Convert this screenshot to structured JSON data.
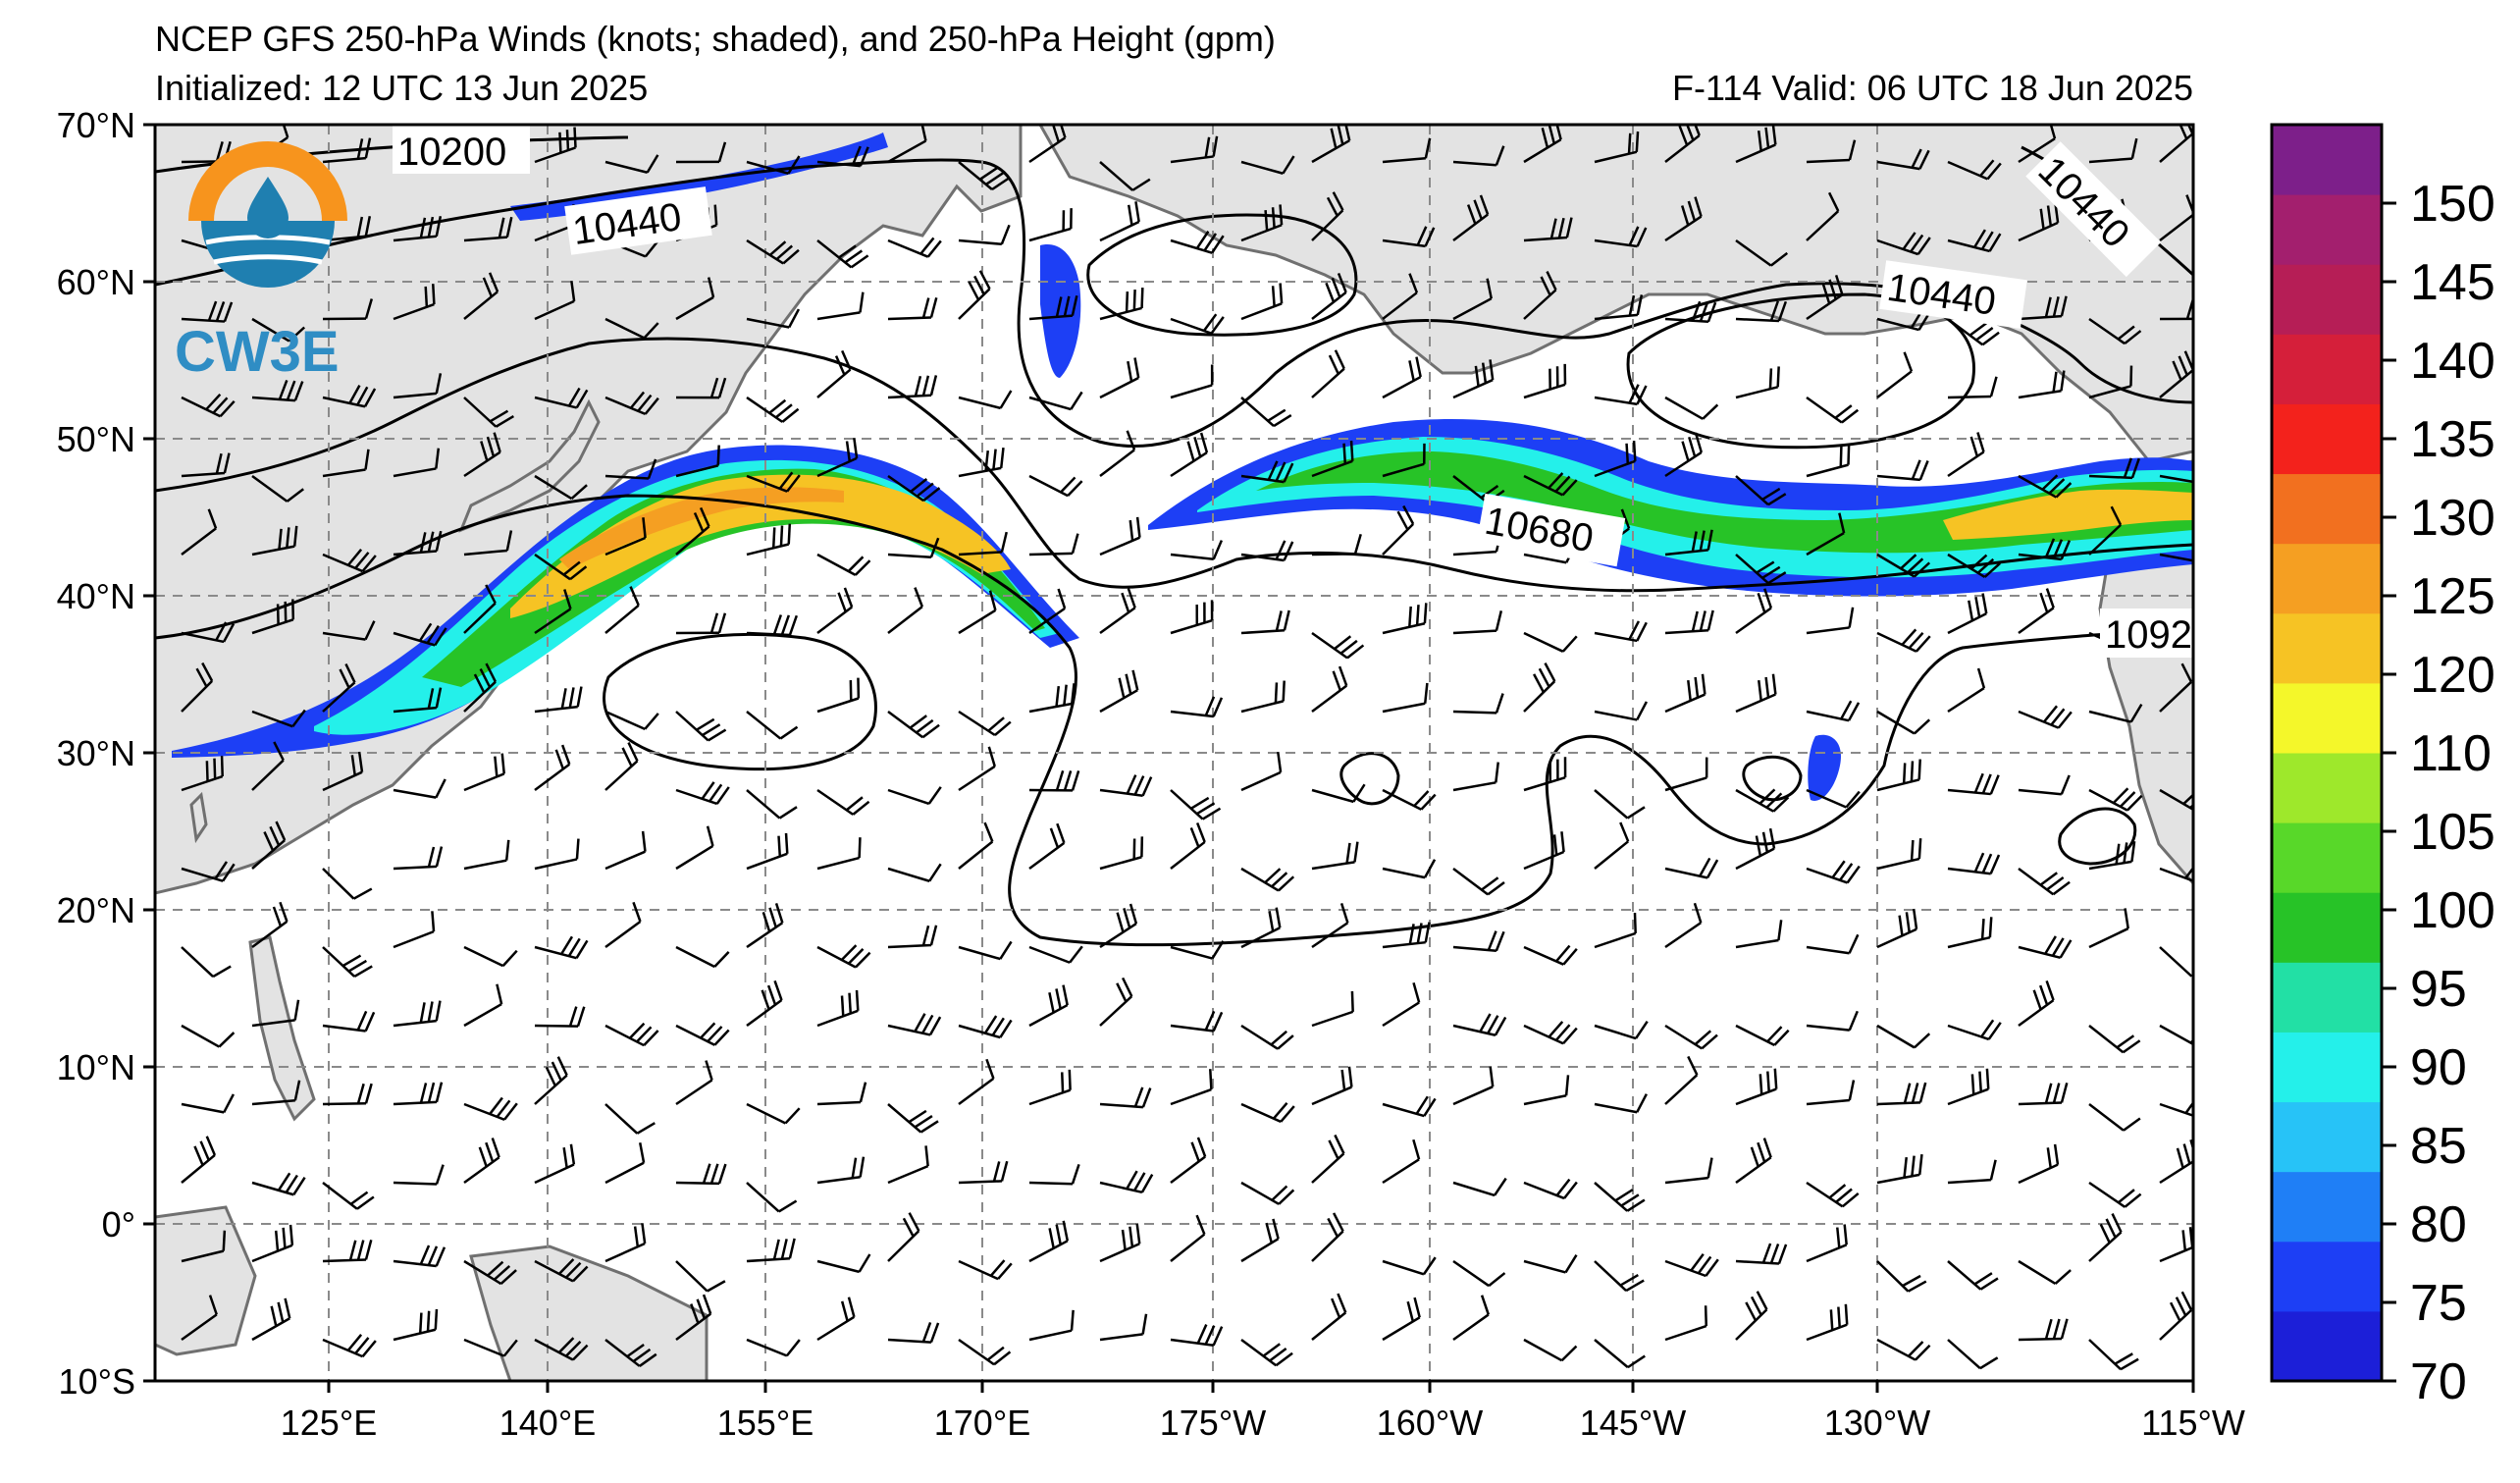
{
  "header": {
    "title": "NCEP GFS 250-hPa Winds (knots; shaded), and 250-hPa Height (gpm)",
    "initialized": "Initialized: 12 UTC 13 Jun 2025",
    "valid": "F-114  Valid: 06 UTC 18 Jun 2025"
  },
  "axes": {
    "lat_labels": [
      "70°N",
      "60°N",
      "50°N",
      "40°N",
      "30°N",
      "20°N",
      "10°N",
      "0°",
      "10°S"
    ],
    "lon_labels": [
      "125°E",
      "140°E",
      "155°E",
      "170°E",
      "175°W",
      "160°W",
      "145°W",
      "130°W",
      "115°W"
    ]
  },
  "colorbar": {
    "labels": [
      "70",
      "75",
      "80",
      "85",
      "90",
      "95",
      "100",
      "105",
      "110",
      "120",
      "125",
      "130",
      "135",
      "140",
      "145",
      "150"
    ],
    "colors": [
      "#1c1fd8",
      "#1d3ff5",
      "#1f7ff6",
      "#27c3f7",
      "#24f0ea",
      "#22e0a5",
      "#27c327",
      "#58d829",
      "#9ee82b",
      "#f4f72a",
      "#f6c324",
      "#f59f22",
      "#f2701f",
      "#f3221c",
      "#d51f3a",
      "#b61e56",
      "#a31f6e",
      "#7d1f8a"
    ]
  },
  "contour_labels": [
    "10200",
    "10440",
    "10440",
    "10440",
    "10680",
    "1092"
  ],
  "logo": {
    "text": "CW3E",
    "colors": {
      "orange": "#f7941d",
      "blue": "#1f7fb0"
    }
  },
  "colors": {
    "land": "#e3e3e3",
    "coast": "#707070",
    "grid": "#8a8a8a"
  }
}
